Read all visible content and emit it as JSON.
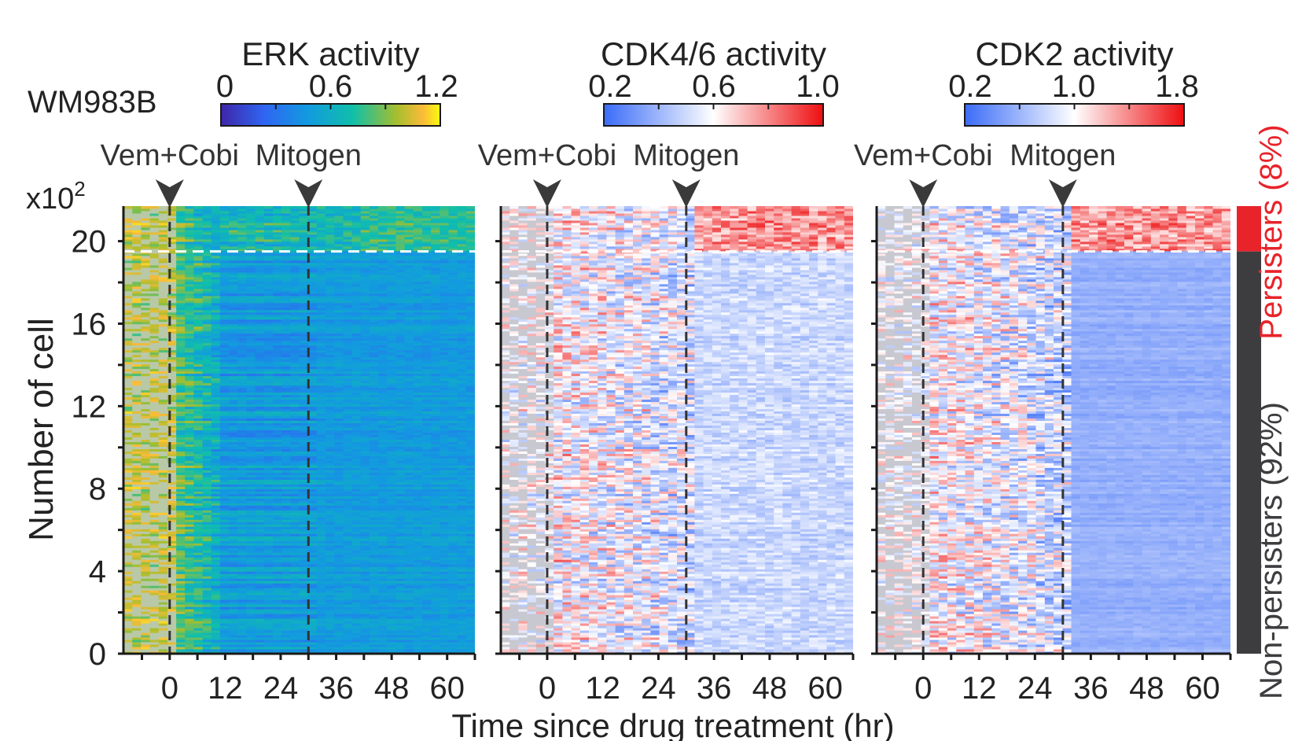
{
  "chart_data": {
    "type": "heatmap",
    "cell_line": "WM983B",
    "xlabel": "Time since drug treatment (hr)",
    "ylabel": "Number of cell",
    "y_multiplier": "x10",
    "y_multiplier_exp": "2",
    "xlim": [
      -10,
      66
    ],
    "ylim": [
      0,
      21.7
    ],
    "x_ticks": [
      0,
      12,
      24,
      36,
      48,
      60
    ],
    "y_ticks": [
      0,
      4,
      8,
      12,
      16,
      20
    ],
    "persister_cutoff": 19.5,
    "events": [
      {
        "label": "Vem+Cobi",
        "time": 0
      },
      {
        "label": "Mitogen",
        "time": 30
      }
    ],
    "panels": [
      {
        "title": "ERK activity",
        "colormap": "parula",
        "range": [
          0,
          1.2
        ],
        "colorbar_ticks": [
          "0",
          "0.6",
          "1.2"
        ]
      },
      {
        "title": "CDK4/6 activity",
        "colormap": "bwr",
        "range": [
          0.2,
          1.0
        ],
        "colorbar_ticks": [
          "0.2",
          "0.6",
          "1.0"
        ]
      },
      {
        "title": "CDK2 activity",
        "colormap": "bwr",
        "range": [
          0.2,
          1.8
        ],
        "colorbar_ticks": [
          "0.2",
          "1.0",
          "1.8"
        ]
      }
    ],
    "groups": [
      {
        "name": "Persisters",
        "percent": "(8%)",
        "color": "#e8232a"
      },
      {
        "name": "Non-persisters",
        "percent": "(92%)",
        "color": "#3d3d40"
      }
    ]
  }
}
